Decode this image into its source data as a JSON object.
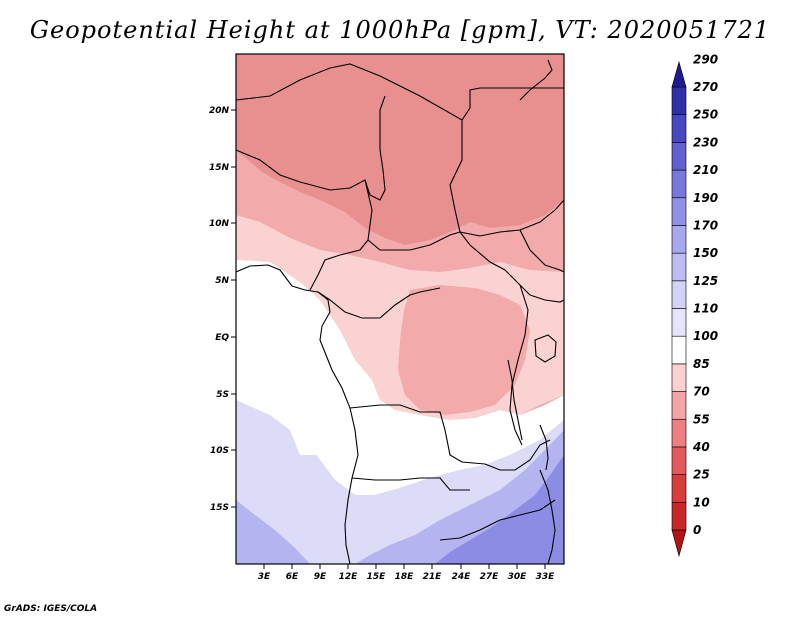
{
  "title": "Geopotential Height at 1000hPa [gpm], VT: 2020051721",
  "credit": "GrADS: IGES/COLA",
  "map": {
    "lat_ticks": [
      "20N",
      "15N",
      "10N",
      "5N",
      "EQ",
      "5S",
      "10S",
      "15S"
    ],
    "lon_ticks": [
      "3E",
      "6E",
      "9E",
      "12E",
      "15E",
      "18E",
      "21E",
      "24E",
      "27E",
      "30E",
      "33E"
    ]
  },
  "colorbar": {
    "levels": [
      "0",
      "10",
      "25",
      "40",
      "55",
      "70",
      "85",
      "100",
      "110",
      "125",
      "150",
      "170",
      "190",
      "210",
      "230",
      "250",
      "270",
      "290"
    ],
    "colors": [
      "#b41414",
      "#c82828",
      "#d83c3c",
      "#e45a5a",
      "#ec8080",
      "#f4a4a4",
      "#fad0d0",
      "#ffffff",
      "#e4e4fa",
      "#d2d2f6",
      "#bcbcf2",
      "#a8a8ee",
      "#9090e6",
      "#7878dc",
      "#6060d0",
      "#4848c0",
      "#3030a8",
      "#1c1c90"
    ]
  },
  "colors": {
    "red_dark": "#e89090",
    "red_mid": "#f2aaaa",
    "red_light": "#fad2d2",
    "white": "#ffffff",
    "blue_light": "#dcdcf8",
    "blue_mid": "#b4b4f0",
    "blue_dark": "#8c8ce4"
  }
}
